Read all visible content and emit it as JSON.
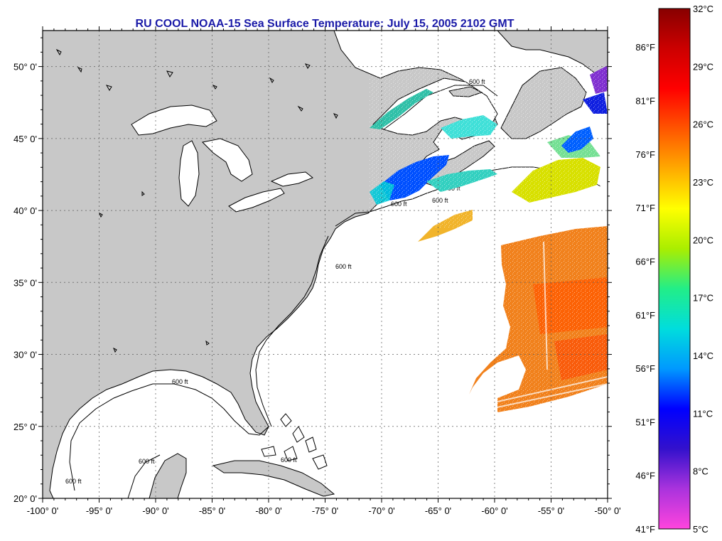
{
  "title": "RU COOL  NOAA-15  Sea Surface Temperature:  July 15, 2005 2102 GMT",
  "map": {
    "lon_ticks": [
      {
        "lon": -100,
        "label": "-100° 0'"
      },
      {
        "lon": -95,
        "label": "-95° 0'"
      },
      {
        "lon": -90,
        "label": "-90° 0'"
      },
      {
        "lon": -85,
        "label": "-85° 0'"
      },
      {
        "lon": -80,
        "label": "-80° 0'"
      },
      {
        "lon": -75,
        "label": "-75° 0'"
      },
      {
        "lon": -70,
        "label": "-70° 0'"
      },
      {
        "lon": -65,
        "label": "-65° 0'"
      },
      {
        "lon": -60,
        "label": "-60° 0'"
      },
      {
        "lon": -55,
        "label": "-55° 0'"
      },
      {
        "lon": -50,
        "label": "-50° 0'"
      }
    ],
    "lat_ticks": [
      {
        "lat": 20,
        "label": "20° 0'"
      },
      {
        "lat": 25,
        "label": "25° 0'"
      },
      {
        "lat": 30,
        "label": "30° 0'"
      },
      {
        "lat": 35,
        "label": "35° 0'"
      },
      {
        "lat": 40,
        "label": "40° 0'"
      },
      {
        "lat": 45,
        "label": "45° 0'"
      },
      {
        "lat": 50,
        "label": "50° 0'"
      }
    ],
    "lon_range": [
      -100,
      -50
    ],
    "lat_range": [
      20,
      52.5
    ],
    "contour_label": "600 ft",
    "land_color": "#c8c8c8",
    "ocean_color": "#ffffff"
  },
  "colorbar": {
    "celsius_labels": [
      {
        "value": 32,
        "label": "32°C"
      },
      {
        "value": 29,
        "label": "29°C"
      },
      {
        "value": 26,
        "label": "26°C"
      },
      {
        "value": 23,
        "label": "23°C"
      },
      {
        "value": 20,
        "label": "20°C"
      },
      {
        "value": 17,
        "label": "17°C"
      },
      {
        "value": 14,
        "label": "14°C"
      },
      {
        "value": 11,
        "label": "11°C"
      },
      {
        "value": 8,
        "label": "8°C"
      },
      {
        "value": 5,
        "label": "5°C"
      }
    ],
    "fahrenheit_labels": [
      {
        "value": 86,
        "label": "86°F"
      },
      {
        "value": 81,
        "label": "81°F"
      },
      {
        "value": 76,
        "label": "76°F"
      },
      {
        "value": 71,
        "label": "71°F"
      },
      {
        "value": 66,
        "label": "66°F"
      },
      {
        "value": 61,
        "label": "61°F"
      },
      {
        "value": 56,
        "label": "56°F"
      },
      {
        "value": 51,
        "label": "51°F"
      },
      {
        "value": 46,
        "label": "46°F"
      },
      {
        "value": 41,
        "label": "41°F"
      }
    ],
    "range_c": [
      5,
      32
    ],
    "stops": [
      "#ff44dd",
      "#aa33dd",
      "#3311cc",
      "#0000ff",
      "#0099ff",
      "#00dddd",
      "#22ee88",
      "#aaee00",
      "#ffff00",
      "#ffaa00",
      "#ff5500",
      "#ff0000",
      "#cc0000",
      "#880000"
    ]
  }
}
